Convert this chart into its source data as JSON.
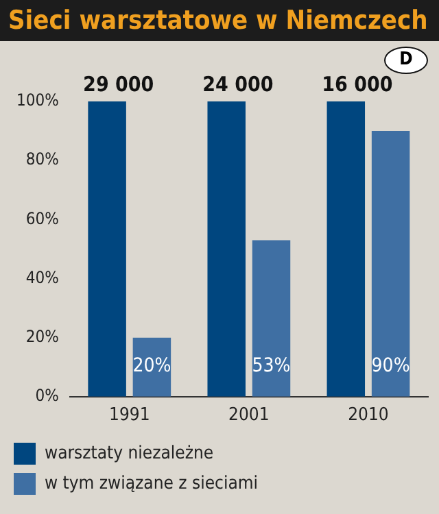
{
  "chart_data": {
    "type": "bar",
    "title": "Sieci warsztatowe w Niemczech",
    "categories": [
      "1991",
      "2001",
      "2010"
    ],
    "series": [
      {
        "name": "warsztaty niezależne",
        "color": "#00467f",
        "values": [
          100,
          100,
          100
        ]
      },
      {
        "name": "w tym związane z sieciami",
        "color": "#3f6fa3",
        "values": [
          20,
          53,
          90
        ],
        "value_labels": [
          "20%",
          "53%",
          "90%"
        ]
      }
    ],
    "ylim": [
      0,
      100
    ],
    "yticks": [
      {
        "value": 0,
        "label": "0%"
      },
      {
        "value": 20,
        "label": "20%"
      },
      {
        "value": 40,
        "label": "40%"
      },
      {
        "value": 60,
        "label": "60%"
      },
      {
        "value": 80,
        "label": "80%"
      },
      {
        "value": 100,
        "label": "100%"
      }
    ],
    "grid": false,
    "legend": "bottom",
    "annotations": [
      "D",
      {
        "text": "29 000",
        "x": "1991",
        "y": 100
      },
      {
        "text": "24 000",
        "x": "2001",
        "y": 100
      },
      {
        "text": "16 000",
        "x": "2010",
        "y": 100
      }
    ]
  }
}
